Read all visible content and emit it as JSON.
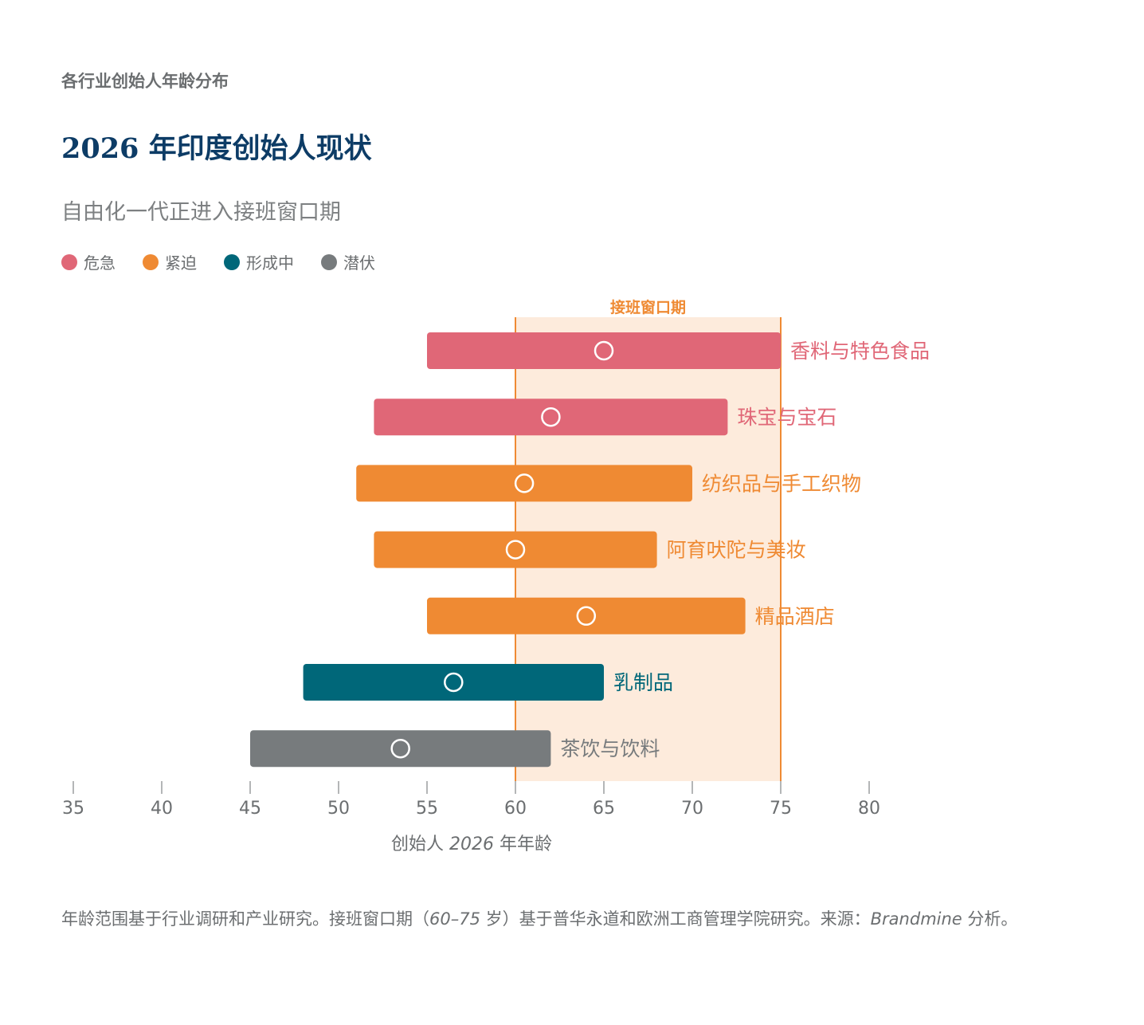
{
  "header": {
    "kicker": "各行业创始人年龄分布",
    "title": "2026 年印度创始人现状",
    "subtitle": "自由化一代正进入接班窗口期"
  },
  "legend": [
    {
      "label": "危急",
      "color": "#e06777"
    },
    {
      "label": "紧迫",
      "color": "#ef8a33"
    },
    {
      "label": "形成中",
      "color": "#006779"
    },
    {
      "label": "潜伏",
      "color": "#777b7d"
    }
  ],
  "chart_data": {
    "type": "range-bar",
    "xlabel_prefix": "创始人 ",
    "xlabel_year": "2026",
    "xlabel_suffix": " 年年龄",
    "xlim": [
      35,
      80
    ],
    "xticks": [
      35,
      40,
      45,
      50,
      55,
      60,
      65,
      70,
      75,
      80
    ],
    "window": {
      "label": "接班窗口期",
      "start": 60,
      "end": 75
    },
    "series": [
      {
        "category": "香料与特色食品",
        "status": "危急",
        "start": 55,
        "end": 75,
        "median": 65
      },
      {
        "category": "珠宝与宝石",
        "status": "危急",
        "start": 52,
        "end": 72,
        "median": 62
      },
      {
        "category": "纺织品与手工织物",
        "status": "紧迫",
        "start": 51,
        "end": 70,
        "median": 60.5
      },
      {
        "category": "阿育吠陀与美妆",
        "status": "紧迫",
        "start": 52,
        "end": 68,
        "median": 60
      },
      {
        "category": "精品酒店",
        "status": "紧迫",
        "start": 55,
        "end": 73,
        "median": 64
      },
      {
        "category": "乳制品",
        "status": "形成中",
        "start": 48,
        "end": 65,
        "median": 56.5
      },
      {
        "category": "茶饮与饮料",
        "status": "潜伏",
        "start": 45,
        "end": 62,
        "median": 53.5
      }
    ],
    "colors": {
      "危急": "#e06777",
      "紧迫": "#ef8a33",
      "形成中": "#006779",
      "潜伏": "#777b7d",
      "window_fill": "#fdebdc",
      "window_line": "#ef8a33"
    }
  },
  "footnote": {
    "part1": "年龄范围基于行业调研和产业研究。接班窗口期（",
    "range": "60–75",
    "part2": " 岁）基于普华永道和欧洲工商管理学院研究。来源：",
    "source": "Brandmine",
    "part3": " 分析。"
  }
}
